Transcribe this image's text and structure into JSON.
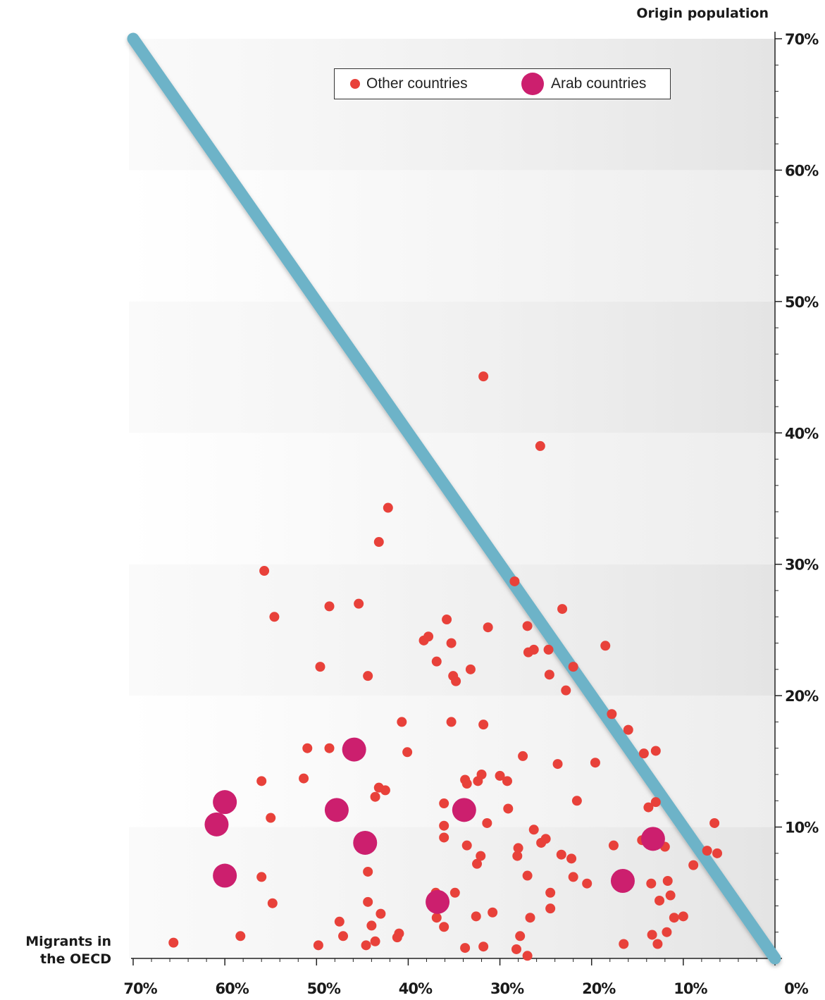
{
  "chart_data": {
    "type": "scatter",
    "title": "",
    "xlabel": "Migrants in the OECD",
    "ylabel": "Origin population",
    "xlim": [
      70,
      0
    ],
    "ylim": [
      0,
      70
    ],
    "x_ticks": [
      "70%",
      "60%",
      "50%",
      "40%",
      "30%",
      "20%",
      "10%",
      "0%"
    ],
    "y_ticks": [
      "10%",
      "20%",
      "30%",
      "40%",
      "50%",
      "60%",
      "70%"
    ],
    "reference_line": {
      "from": [
        70,
        70
      ],
      "to": [
        0,
        0
      ],
      "color": "#6db3c8"
    },
    "legend": {
      "placement": "top",
      "items": [
        "Other countries",
        "Arab countries"
      ]
    },
    "colors": {
      "other": "#e8413a",
      "arab": "#cc1f6e",
      "line": "#6db3c8"
    },
    "series": [
      {
        "name": "Other countries",
        "color": "#e8413a",
        "points": [
          [
            65.6,
            1.2
          ],
          [
            58.3,
            1.7
          ],
          [
            55.7,
            29.5
          ],
          [
            54.6,
            26.0
          ],
          [
            56.0,
            13.5
          ],
          [
            55.0,
            10.7
          ],
          [
            56.0,
            6.2
          ],
          [
            54.8,
            4.2
          ],
          [
            51.0,
            16.0
          ],
          [
            51.4,
            13.7
          ],
          [
            49.6,
            22.2
          ],
          [
            48.6,
            26.8
          ],
          [
            48.6,
            16.0
          ],
          [
            47.5,
            2.8
          ],
          [
            47.1,
            1.7
          ],
          [
            49.8,
            1.0
          ],
          [
            45.4,
            27.0
          ],
          [
            44.4,
            21.5
          ],
          [
            44.4,
            6.6
          ],
          [
            44.4,
            4.3
          ],
          [
            44.0,
            2.5
          ],
          [
            43.6,
            1.3
          ],
          [
            44.6,
            1.0
          ],
          [
            43.0,
            3.4
          ],
          [
            43.2,
            31.7
          ],
          [
            42.2,
            34.3
          ],
          [
            43.2,
            13.0
          ],
          [
            42.5,
            12.8
          ],
          [
            43.6,
            12.3
          ],
          [
            40.7,
            18.0
          ],
          [
            40.1,
            15.7
          ],
          [
            41.0,
            1.9
          ],
          [
            41.2,
            1.6
          ],
          [
            38.3,
            24.2
          ],
          [
            37.8,
            24.5
          ],
          [
            36.9,
            22.6
          ],
          [
            35.8,
            25.8
          ],
          [
            35.3,
            24.0
          ],
          [
            35.1,
            21.5
          ],
          [
            34.8,
            21.1
          ],
          [
            33.2,
            22.0
          ],
          [
            35.3,
            18.0
          ],
          [
            31.8,
            17.8
          ],
          [
            36.1,
            11.8
          ],
          [
            36.1,
            10.1
          ],
          [
            36.1,
            9.2
          ],
          [
            37.0,
            5.0
          ],
          [
            36.9,
            3.1
          ],
          [
            36.1,
            2.4
          ],
          [
            34.9,
            5.0
          ],
          [
            33.6,
            8.6
          ],
          [
            32.5,
            7.2
          ],
          [
            32.1,
            7.8
          ],
          [
            33.8,
            13.6
          ],
          [
            33.6,
            13.3
          ],
          [
            32.4,
            13.5
          ],
          [
            32.0,
            14.0
          ],
          [
            31.3,
            25.2
          ],
          [
            31.4,
            10.3
          ],
          [
            30.8,
            3.5
          ],
          [
            32.6,
            3.2
          ],
          [
            31.8,
            0.9
          ],
          [
            33.8,
            0.8
          ],
          [
            31.8,
            44.3
          ],
          [
            30.0,
            13.9
          ],
          [
            29.2,
            13.5
          ],
          [
            29.1,
            11.4
          ],
          [
            28.4,
            28.7
          ],
          [
            27.0,
            25.3
          ],
          [
            26.9,
            23.3
          ],
          [
            26.3,
            23.5
          ],
          [
            24.7,
            23.5
          ],
          [
            24.6,
            21.6
          ],
          [
            27.5,
            15.4
          ],
          [
            26.3,
            9.8
          ],
          [
            25.6,
            39.0
          ],
          [
            23.2,
            26.6
          ],
          [
            23.7,
            14.8
          ],
          [
            22.0,
            22.2
          ],
          [
            22.8,
            20.4
          ],
          [
            21.6,
            12.0
          ],
          [
            25.5,
            8.8
          ],
          [
            25.0,
            9.1
          ],
          [
            23.3,
            7.9
          ],
          [
            22.2,
            7.6
          ],
          [
            22.0,
            6.2
          ],
          [
            20.5,
            5.7
          ],
          [
            24.5,
            5.0
          ],
          [
            24.5,
            3.8
          ],
          [
            27.0,
            6.3
          ],
          [
            28.0,
            8.4
          ],
          [
            28.1,
            7.8
          ],
          [
            26.7,
            3.1
          ],
          [
            27.8,
            1.7
          ],
          [
            28.2,
            0.7
          ],
          [
            27.0,
            0.2
          ],
          [
            18.5,
            23.8
          ],
          [
            17.8,
            18.6
          ],
          [
            17.6,
            8.6
          ],
          [
            16.0,
            17.4
          ],
          [
            19.6,
            14.9
          ],
          [
            14.3,
            15.6
          ],
          [
            13.0,
            15.8
          ],
          [
            13.8,
            11.5
          ],
          [
            13.0,
            11.9
          ],
          [
            14.5,
            9.0
          ],
          [
            12.0,
            8.5
          ],
          [
            13.5,
            5.7
          ],
          [
            11.7,
            5.9
          ],
          [
            11.4,
            4.8
          ],
          [
            12.6,
            4.4
          ],
          [
            11.0,
            3.1
          ],
          [
            10.0,
            3.2
          ],
          [
            11.8,
            2.0
          ],
          [
            13.4,
            1.8
          ],
          [
            12.8,
            1.1
          ],
          [
            16.5,
            1.1
          ],
          [
            8.9,
            7.1
          ],
          [
            7.4,
            8.2
          ],
          [
            6.6,
            10.3
          ],
          [
            6.3,
            8.0
          ]
        ]
      },
      {
        "name": "Arab countries",
        "color": "#cc1f6e",
        "points": [
          [
            60.0,
            11.9
          ],
          [
            60.9,
            10.2
          ],
          [
            60.0,
            6.3
          ],
          [
            47.8,
            11.3
          ],
          [
            45.9,
            15.9
          ],
          [
            44.7,
            8.8
          ],
          [
            36.8,
            4.3
          ],
          [
            33.9,
            11.3
          ],
          [
            16.6,
            5.9
          ],
          [
            13.3,
            9.1
          ]
        ]
      }
    ]
  }
}
